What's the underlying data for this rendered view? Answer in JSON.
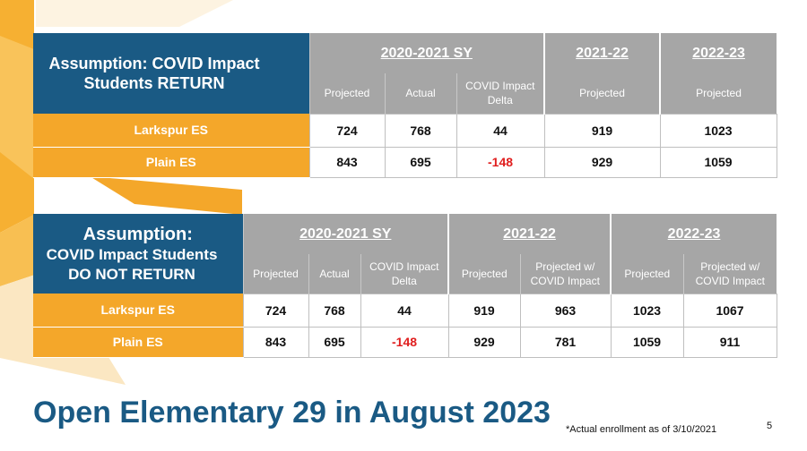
{
  "table1": {
    "assumption": "Assumption: COVID Impact Students RETURN",
    "groups": [
      "2020-2021 SY",
      "2021-22",
      "2022-23"
    ],
    "subheaders": [
      "Projected",
      "Actual",
      "COVID Impact Delta",
      "Projected",
      "Projected"
    ],
    "rows": [
      {
        "school": "Larkspur ES",
        "values": [
          "724",
          "768",
          "44",
          "919",
          "1023"
        ]
      },
      {
        "school": "Plain ES",
        "values": [
          "843",
          "695",
          "-148",
          "929",
          "1059"
        ]
      }
    ]
  },
  "table2": {
    "assumption_line1": "Assumption:",
    "assumption_line2": "COVID Impact Students DO NOT RETURN",
    "groups": [
      "2020-2021 SY",
      "2021-22",
      "2022-23"
    ],
    "subheaders": [
      "Projected",
      "Actual",
      "COVID Impact Delta",
      "Projected",
      "Projected w/ COVID Impact",
      "Projected",
      "Projected w/ COVID Impact"
    ],
    "rows": [
      {
        "school": "Larkspur ES",
        "values": [
          "724",
          "768",
          "44",
          "919",
          "963",
          "1023",
          "1067"
        ]
      },
      {
        "school": "Plain ES",
        "values": [
          "843",
          "695",
          "-148",
          "929",
          "781",
          "1059",
          "911"
        ]
      }
    ]
  },
  "title": "Open Elementary 29 in August 2023",
  "footnote": "*Actual enrollment as of 3/10/2021",
  "page_number": "5",
  "colors": {
    "navy": "#1a5a84",
    "orange": "#f4a72a",
    "gray_header": "#a6a6a6",
    "negative": "#e01e1e"
  }
}
